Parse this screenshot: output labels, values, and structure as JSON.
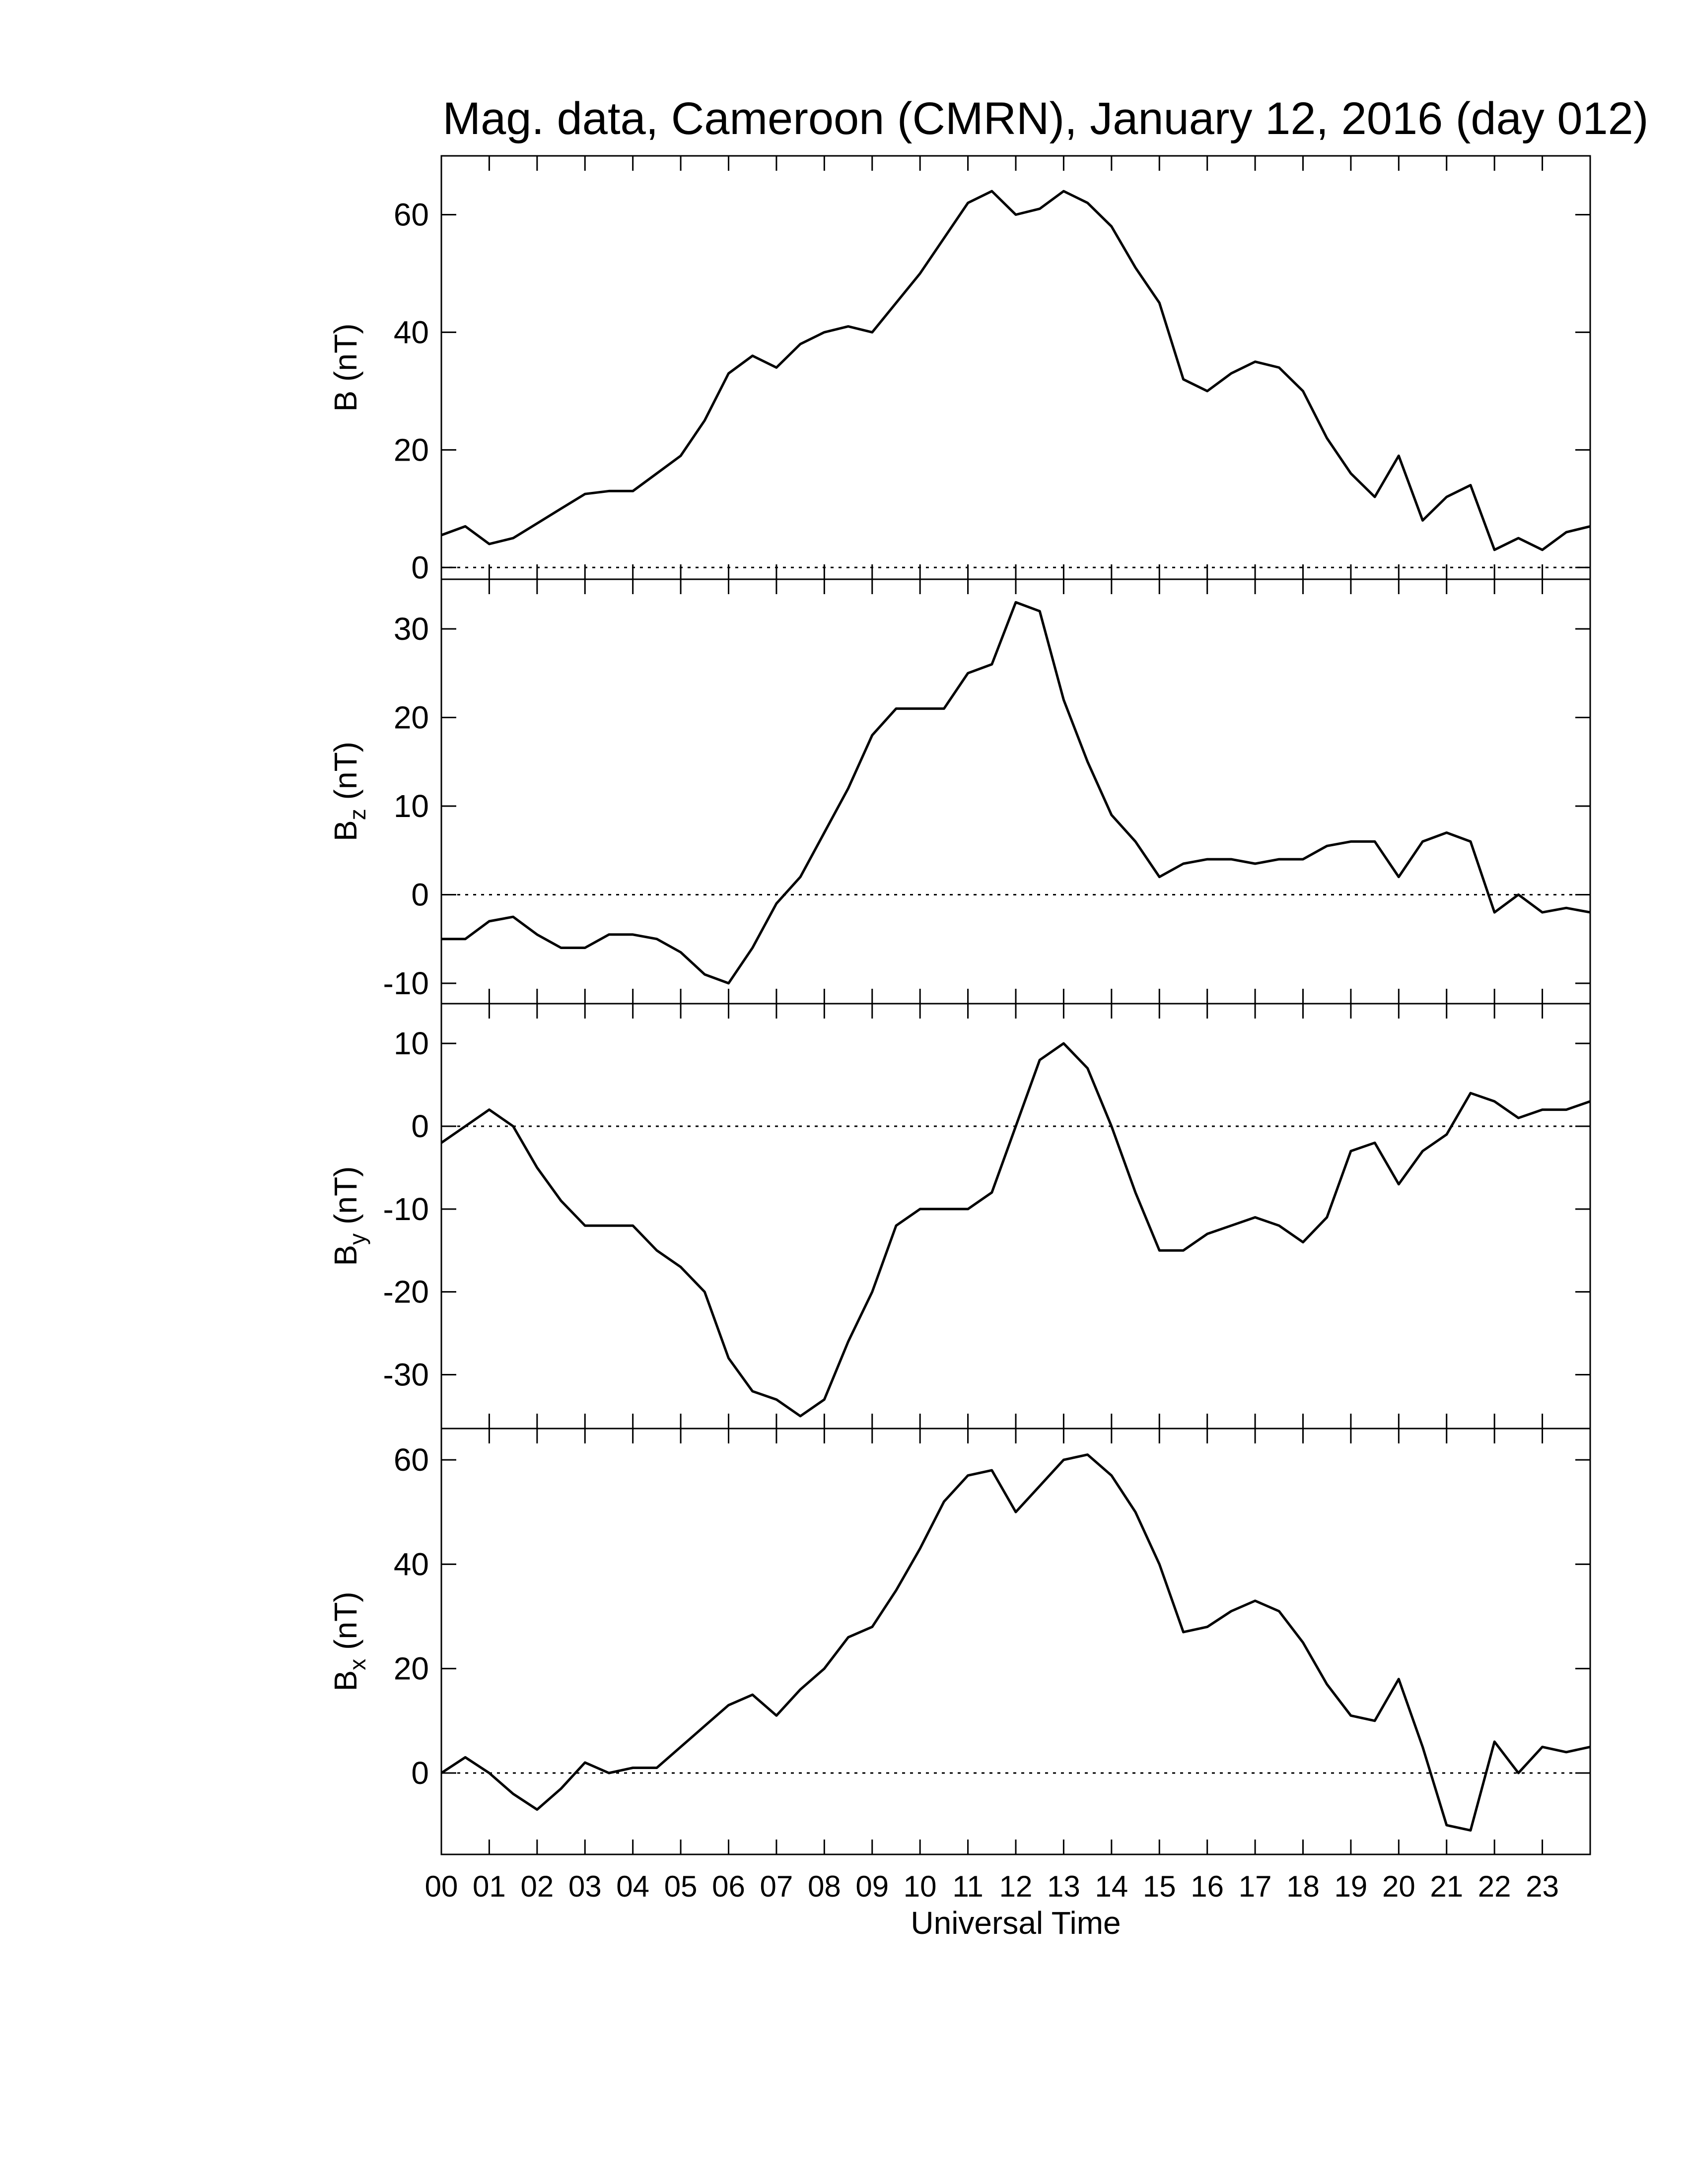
{
  "chart_data": [
    {
      "type": "line",
      "title": "Mag. data, Cameroon (CMRN), January 12, 2016 (day 012)",
      "ylabel": {
        "symbol": "B",
        "unit": "(nT)"
      },
      "reference_line": 0,
      "color": "#000000",
      "x": [
        0,
        0.5,
        1,
        1.5,
        2,
        2.5,
        3,
        3.5,
        4,
        4.5,
        5,
        5.5,
        6,
        6.5,
        7,
        7.5,
        8,
        8.5,
        9,
        9.5,
        10,
        10.5,
        11,
        11.5,
        12,
        12.5,
        13,
        13.5,
        14,
        14.5,
        15,
        15.5,
        16,
        16.5,
        17,
        17.5,
        18,
        18.5,
        19,
        19.5,
        20,
        20.5,
        21,
        21.5,
        22,
        22.5,
        23,
        23.5,
        24
      ],
      "values": [
        5.5,
        7,
        4,
        5,
        7.5,
        10,
        12.5,
        13,
        13,
        16,
        19,
        25,
        33,
        36,
        34,
        38,
        40,
        41,
        40,
        45,
        50,
        56,
        62,
        64,
        60,
        61,
        64,
        62,
        58,
        51,
        45,
        32,
        30,
        33,
        35,
        34,
        30,
        22,
        16,
        12,
        19,
        8,
        12,
        14,
        3,
        5,
        3,
        6,
        7
      ],
      "xlim": [
        0,
        24
      ],
      "ylim": [
        -2,
        70
      ],
      "yticks": [
        0,
        20,
        40,
        60
      ]
    },
    {
      "type": "line",
      "ylabel": {
        "symbol": "B",
        "subscript": "z",
        "unit": "(nT)"
      },
      "reference_line": 0,
      "color": "#000000",
      "x": [
        0,
        0.5,
        1,
        1.5,
        2,
        2.5,
        3,
        3.5,
        4,
        4.5,
        5,
        5.5,
        6,
        6.5,
        7,
        7.5,
        8,
        8.5,
        9,
        9.5,
        10,
        10.5,
        11,
        11.5,
        12,
        12.5,
        13,
        13.5,
        14,
        14.5,
        15,
        15.5,
        16,
        16.5,
        17,
        17.5,
        18,
        18.5,
        19,
        19.5,
        20,
        20.5,
        21,
        21.5,
        22,
        22.5,
        23,
        23.5,
        24
      ],
      "values": [
        -5,
        -5,
        -3,
        -2.5,
        -4.5,
        -6,
        -6,
        -4.5,
        -4.5,
        -5,
        -6.5,
        -9,
        -10,
        -6,
        -1,
        2,
        7,
        12,
        18,
        21,
        21,
        21,
        25,
        26,
        33,
        32,
        22,
        15,
        9,
        6,
        2,
        3.5,
        4,
        4,
        3.5,
        4,
        4,
        5.5,
        6,
        6,
        2,
        6,
        7,
        6,
        -2,
        0,
        -2,
        -1.5,
        -2
      ],
      "xlim": [
        0,
        24
      ],
      "ylim": [
        -12.3,
        35.6
      ],
      "yticks": [
        -10,
        0,
        10,
        20,
        30
      ]
    },
    {
      "type": "line",
      "ylabel": {
        "symbol": "B",
        "subscript": "y",
        "unit": "(nT)"
      },
      "reference_line": 0,
      "color": "#000000",
      "x": [
        0,
        0.5,
        1,
        1.5,
        2,
        2.5,
        3,
        3.5,
        4,
        4.5,
        5,
        5.5,
        6,
        6.5,
        7,
        7.5,
        8,
        8.5,
        9,
        9.5,
        10,
        10.5,
        11,
        11.5,
        12,
        12.5,
        13,
        13.5,
        14,
        14.5,
        15,
        15.5,
        16,
        16.5,
        17,
        17.5,
        18,
        18.5,
        19,
        19.5,
        20,
        20.5,
        21,
        21.5,
        22,
        22.5,
        23,
        23.5,
        24
      ],
      "values": [
        -2,
        0,
        2,
        0,
        -5,
        -9,
        -12,
        -12,
        -12,
        -15,
        -17,
        -20,
        -28,
        -32,
        -33,
        -35,
        -33,
        -26,
        -20,
        -12,
        -10,
        -10,
        -10,
        -8,
        0,
        8,
        10,
        7,
        0,
        -8,
        -15,
        -15,
        -13,
        -12,
        -11,
        -12,
        -14,
        -11,
        -3,
        -2,
        -7,
        -3,
        -1,
        4,
        3,
        1,
        2,
        2,
        3
      ],
      "xlim": [
        0,
        24
      ],
      "ylim": [
        -36.5,
        14.8
      ],
      "yticks": [
        -30,
        -20,
        -10,
        0,
        10
      ]
    },
    {
      "type": "line",
      "ylabel": {
        "symbol": "B",
        "subscript": "x",
        "unit": "(nT)"
      },
      "xlabel": "Universal Time",
      "reference_line": 0,
      "color": "#000000",
      "x": [
        0,
        0.5,
        1,
        1.5,
        2,
        2.5,
        3,
        3.5,
        4,
        4.5,
        5,
        5.5,
        6,
        6.5,
        7,
        7.5,
        8,
        8.5,
        9,
        9.5,
        10,
        10.5,
        11,
        11.5,
        12,
        12.5,
        13,
        13.5,
        14,
        14.5,
        15,
        15.5,
        16,
        16.5,
        17,
        17.5,
        18,
        18.5,
        19,
        19.5,
        20,
        20.5,
        21,
        21.5,
        22,
        22.5,
        23,
        23.5,
        24
      ],
      "values": [
        0,
        3,
        0,
        -4,
        -7,
        -3,
        2,
        0,
        1,
        1,
        5,
        9,
        13,
        15,
        11,
        16,
        20,
        26,
        28,
        35,
        43,
        52,
        57,
        58,
        50,
        55,
        60,
        61,
        57,
        50,
        40,
        27,
        28,
        31,
        33,
        31,
        25,
        17,
        11,
        10,
        18,
        5,
        -10,
        -11,
        6,
        0,
        5,
        4,
        5
      ],
      "xlim": [
        0,
        24
      ],
      "ylim": [
        -15.6,
        66
      ],
      "yticks": [
        0,
        20,
        40,
        60
      ],
      "xticks": [
        {
          "value": 0,
          "label": "00"
        },
        {
          "value": 1,
          "label": "01"
        },
        {
          "value": 2,
          "label": "02"
        },
        {
          "value": 3,
          "label": "03"
        },
        {
          "value": 4,
          "label": "04"
        },
        {
          "value": 5,
          "label": "05"
        },
        {
          "value": 6,
          "label": "06"
        },
        {
          "value": 7,
          "label": "07"
        },
        {
          "value": 8,
          "label": "08"
        },
        {
          "value": 9,
          "label": "09"
        },
        {
          "value": 10,
          "label": "10"
        },
        {
          "value": 11,
          "label": "11"
        },
        {
          "value": 12,
          "label": "12"
        },
        {
          "value": 13,
          "label": "13"
        },
        {
          "value": 14,
          "label": "14"
        },
        {
          "value": 15,
          "label": "15"
        },
        {
          "value": 16,
          "label": "16"
        },
        {
          "value": 17,
          "label": "17"
        },
        {
          "value": 18,
          "label": "18"
        },
        {
          "value": 19,
          "label": "19"
        },
        {
          "value": 20,
          "label": "20"
        },
        {
          "value": 21,
          "label": "21"
        },
        {
          "value": 22,
          "label": "22"
        },
        {
          "value": 23,
          "label": "23"
        }
      ]
    }
  ]
}
